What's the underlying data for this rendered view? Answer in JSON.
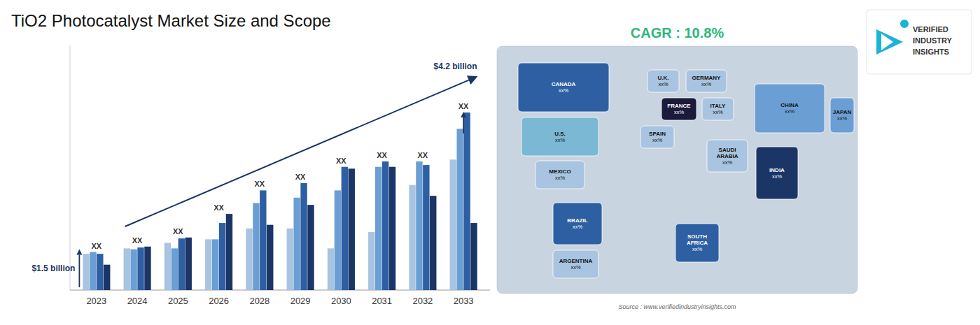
{
  "chart_data": {
    "type": "bar",
    "title": "TiO2 Photocatalyst Market Size and Scope",
    "categories": [
      "2023",
      "2024",
      "2025",
      "2026",
      "2028",
      "2029",
      "2030",
      "2031",
      "2032",
      "2033"
    ],
    "series": [
      {
        "color": "#a8c4e0",
        "values": [
          2.0,
          2.3,
          2.6,
          2.8,
          3.4,
          3.4,
          2.3,
          3.2,
          5.8,
          7.2
        ]
      },
      {
        "color": "#6b9fd4",
        "values": [
          2.1,
          2.25,
          2.3,
          2.8,
          4.8,
          5.1,
          5.5,
          6.8,
          7.1,
          8.9
        ]
      },
      {
        "color": "#2e5fa3",
        "values": [
          2.0,
          2.35,
          2.85,
          3.7,
          5.5,
          5.9,
          6.8,
          7.1,
          6.9,
          9.8
        ]
      },
      {
        "color": "#1a3566",
        "values": [
          1.4,
          2.4,
          2.9,
          4.2,
          3.6,
          4.7,
          6.7,
          6.8,
          5.2,
          3.7
        ]
      }
    ],
    "ylim": [
      0,
      13.5
    ],
    "tick_labels": "x",
    "grid": false,
    "group_labels": [
      "XX",
      "XX",
      "XX",
      "XX",
      "XX",
      "XX",
      "XX",
      "XX",
      "XX",
      "XX"
    ],
    "annotations": [
      {
        "text": "$1.5 billion",
        "color": "#1a3566"
      },
      {
        "text": "$4.2 billion",
        "color": "#1a3566"
      },
      {
        "text": "CAGR : 10.8%",
        "color": "#2db87a"
      },
      {
        "text": "Source : www.verifiedindustryinsights.com"
      }
    ],
    "map": {
      "color": "#c8d4e0",
      "regions": [
        {
          "name": "CANADA",
          "label": "xx%",
          "color": "#2e5fa3"
        },
        {
          "name": "U.S.",
          "label": "xx%",
          "color": "#7ab8d4"
        },
        {
          "name": "MEXICO",
          "label": "xx%",
          "color": "#a8c4e0"
        },
        {
          "name": "BRAZIL",
          "label": "xx%",
          "color": "#2e5fa3"
        },
        {
          "name": "ARGENTINA",
          "label": "xx%",
          "color": "#a8c4e0"
        },
        {
          "name": "U.K.",
          "label": "xx%",
          "color": "#a8c4e0"
        },
        {
          "name": "FRANCE",
          "label": "xx%",
          "color": "#1a1a3a"
        },
        {
          "name": "SPAIN",
          "label": "xx%",
          "color": "#a8c4e0"
        },
        {
          "name": "GERMANY",
          "label": "xx%",
          "color": "#a8c4e0"
        },
        {
          "name": "ITALY",
          "label": "xx%",
          "color": "#a8c4e0"
        },
        {
          "name": "SAUDI\nARABIA",
          "label": "xx%",
          "color": "#a8c4e0"
        },
        {
          "name": "SOUTH\nAFRICA",
          "label": "xx%",
          "color": "#2e5fa3"
        },
        {
          "name": "CHINA",
          "label": "xx%",
          "color": "#6b9fd4"
        },
        {
          "name": "INDIA",
          "label": "xx%",
          "color": "#1a3566"
        },
        {
          "name": "JAPAN",
          "label": "xx%",
          "color": "#6b9fd4"
        }
      ]
    },
    "logo": {
      "color": "#1ab4d4",
      "text": [
        "VERIFIED",
        "INDUSTRY",
        "INSIGHTS"
      ]
    }
  }
}
